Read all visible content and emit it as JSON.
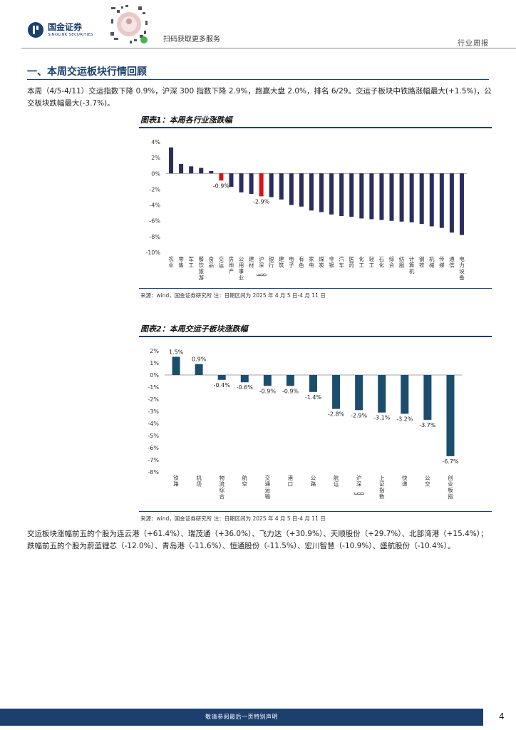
{
  "header": {
    "brand_cn": "国金证券",
    "brand_en": "SINOLINK SECURITIES",
    "qr_caption": "扫码获取更多服务",
    "report_type": "行业周报"
  },
  "section": {
    "title": "一、本周交运板块行情回顾"
  },
  "paragraphs": {
    "intro": "本周（4/5-4/11）交运指数下降 0.9%，沪深 300 指数下降 2.9%，跑赢大盘 2.0%，排名 6/29。交运子板块中铁路涨幅最大(+1.5%)，公交板块跌幅最大(-3.7%)。",
    "stocks": "交运板块涨幅前五的个股为连云港（+61.4%）、瑞茂通（+36.0%）、飞力达（+30.9%）、天顺股份（+29.7%）、北部湾港（+15.4%）；跌幅前五的个股为蔚蓝锂芯（-12.0%）、青岛港（-11.6%）、恒通股份（-11.5%）、宏川智慧（-10.9%）、盛航股份（-10.4%）。"
  },
  "figures": {
    "fig1_title": "图表1：本周各行业涨跌幅",
    "fig2_title": "图表2：本周交运子板块涨跌幅",
    "source1": "来源：wind，国金证券研究所   注：日期区间为 2025 年 4 月 5 日-4 月 11 日",
    "source2": "来源：wind，国金证券研究所   注：日期区间为 2025 年 4 月 5 日-4 月 11 日"
  },
  "footer": {
    "disclaimer": "敬请参阅最后一页特别声明",
    "page": "4"
  },
  "colors": {
    "navy": "#2b2d5e",
    "highlight": "#d9111a",
    "teal": "#1b4e6e",
    "brand": "#1c3f6e"
  },
  "chart_data": [
    {
      "type": "bar",
      "title": "图表1：本周各行业涨跌幅",
      "categories": [
        "农业",
        "零售",
        "军工",
        "餐饮旅游",
        "食品",
        "交运",
        "房地产",
        "公用事业",
        "建材",
        "沪深300",
        "银行",
        "建筑",
        "电子",
        "有色",
        "家电",
        "煤炭",
        "非银",
        "汽车",
        "医药",
        "化工",
        "轻工",
        "石化",
        "综合",
        "纺服",
        "计算机",
        "钢铁",
        "机械",
        "传媒",
        "通信",
        "电力设备"
      ],
      "values": [
        3.3,
        1.2,
        0.9,
        0.7,
        0.3,
        -0.9,
        -1.7,
        -2.4,
        -2.6,
        -2.9,
        -3.0,
        -3.3,
        -4.0,
        -4.2,
        -4.7,
        -4.9,
        -5.2,
        -5.4,
        -5.5,
        -5.7,
        -5.8,
        -5.9,
        -6.0,
        -6.1,
        -6.2,
        -6.4,
        -6.7,
        -6.9,
        -7.5,
        -7.8
      ],
      "highlight": [
        "交运",
        "沪深300"
      ],
      "data_labels": [
        {
          "category": "交运",
          "text": "-0.9%"
        },
        {
          "category": "沪深300",
          "text": "-2.9%"
        }
      ],
      "ylim": [
        -10,
        4
      ],
      "yticks": [
        4,
        2,
        0,
        -2,
        -4,
        -6,
        -8,
        -10
      ],
      "ytick_labels": [
        "4%",
        "2%",
        "0%",
        "-2%",
        "-4%",
        "-6%",
        "-8%",
        "-10%"
      ]
    },
    {
      "type": "bar",
      "title": "图表2：本周交运子板块涨跌幅",
      "categories": [
        "铁路",
        "机场",
        "物流综合",
        "航空",
        "交通运输",
        "港口",
        "公路",
        "航运",
        "沪深300",
        "上证指数",
        "快递",
        "公交",
        "创业板指"
      ],
      "values": [
        1.5,
        0.9,
        -0.4,
        -0.6,
        -0.9,
        -0.9,
        -1.4,
        -2.8,
        -2.9,
        -3.1,
        -3.2,
        -3.7,
        -6.7
      ],
      "labels": [
        "1.5%",
        "0.9%",
        "-0.4%",
        "-0.6%",
        "-0.9%",
        "-0.9%",
        "-1.4%",
        "-2.8%",
        "-2.9%",
        "-3.1%",
        "-3.2%",
        "-3.7%",
        "-6.7%"
      ],
      "ylim": [
        -8,
        2
      ],
      "yticks": [
        2,
        1,
        0,
        -1,
        -2,
        -3,
        -4,
        -5,
        -6,
        -7,
        -8
      ],
      "ytick_labels": [
        "2%",
        "1%",
        "0%",
        "-1%",
        "-2%",
        "-3%",
        "-4%",
        "-5%",
        "-6%",
        "-7%",
        "-8%"
      ]
    }
  ]
}
